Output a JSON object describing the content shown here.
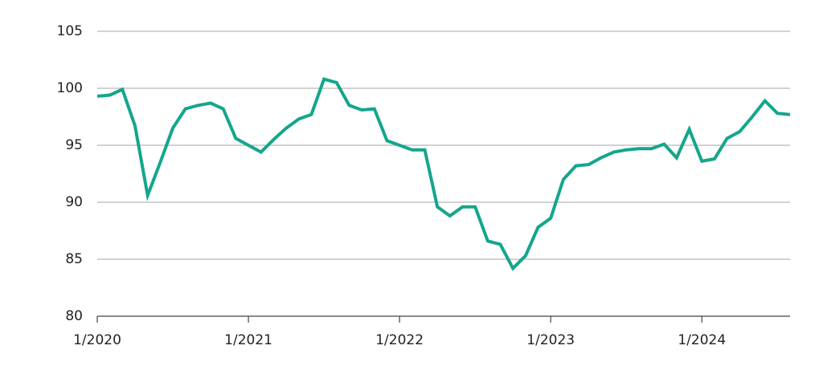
{
  "chart_data": {
    "type": "line",
    "x": [
      "1/2020",
      "2/2020",
      "3/2020",
      "4/2020",
      "5/2020",
      "6/2020",
      "7/2020",
      "8/2020",
      "9/2020",
      "10/2020",
      "11/2020",
      "12/2020",
      "1/2021",
      "2/2021",
      "3/2021",
      "4/2021",
      "5/2021",
      "6/2021",
      "7/2021",
      "8/2021",
      "9/2021",
      "10/2021",
      "11/2021",
      "12/2021",
      "1/2022",
      "2/2022",
      "3/2022",
      "4/2022",
      "5/2022",
      "6/2022",
      "7/2022",
      "8/2022",
      "9/2022",
      "10/2022",
      "11/2022",
      "12/2022",
      "1/2023",
      "2/2023",
      "3/2023",
      "4/2023",
      "5/2023",
      "6/2023",
      "7/2023",
      "8/2023",
      "9/2023",
      "10/2023",
      "11/2023",
      "12/2023",
      "1/2024",
      "2/2024",
      "3/2024",
      "4/2024",
      "5/2024",
      "6/2024",
      "7/2024",
      "8/2024"
    ],
    "series": [
      {
        "color": "#14a68c",
        "values": [
          99.3,
          99.4,
          99.9,
          96.7,
          90.6,
          93.5,
          96.5,
          98.2,
          98.5,
          98.7,
          98.2,
          95.6,
          95.0,
          94.4,
          95.5,
          96.5,
          97.3,
          97.7,
          100.8,
          100.5,
          98.5,
          98.1,
          98.2,
          95.4,
          95.0,
          94.6,
          94.6,
          89.6,
          88.8,
          89.6,
          89.6,
          86.6,
          86.3,
          84.2,
          85.3,
          87.8,
          88.6,
          92.0,
          93.2,
          93.3,
          93.9,
          94.4,
          94.6,
          94.7,
          94.7,
          95.1,
          93.9,
          96.4,
          93.6,
          93.8,
          95.6,
          96.2,
          97.5,
          98.9,
          97.8,
          97.7
        ]
      }
    ],
    "xticks": [
      "1/2020",
      "1/2021",
      "1/2022",
      "1/2023",
      "1/2024"
    ],
    "ylim": [
      80,
      105
    ],
    "yticks": [
      80,
      85,
      90,
      95,
      100,
      105
    ],
    "grid": true
  }
}
